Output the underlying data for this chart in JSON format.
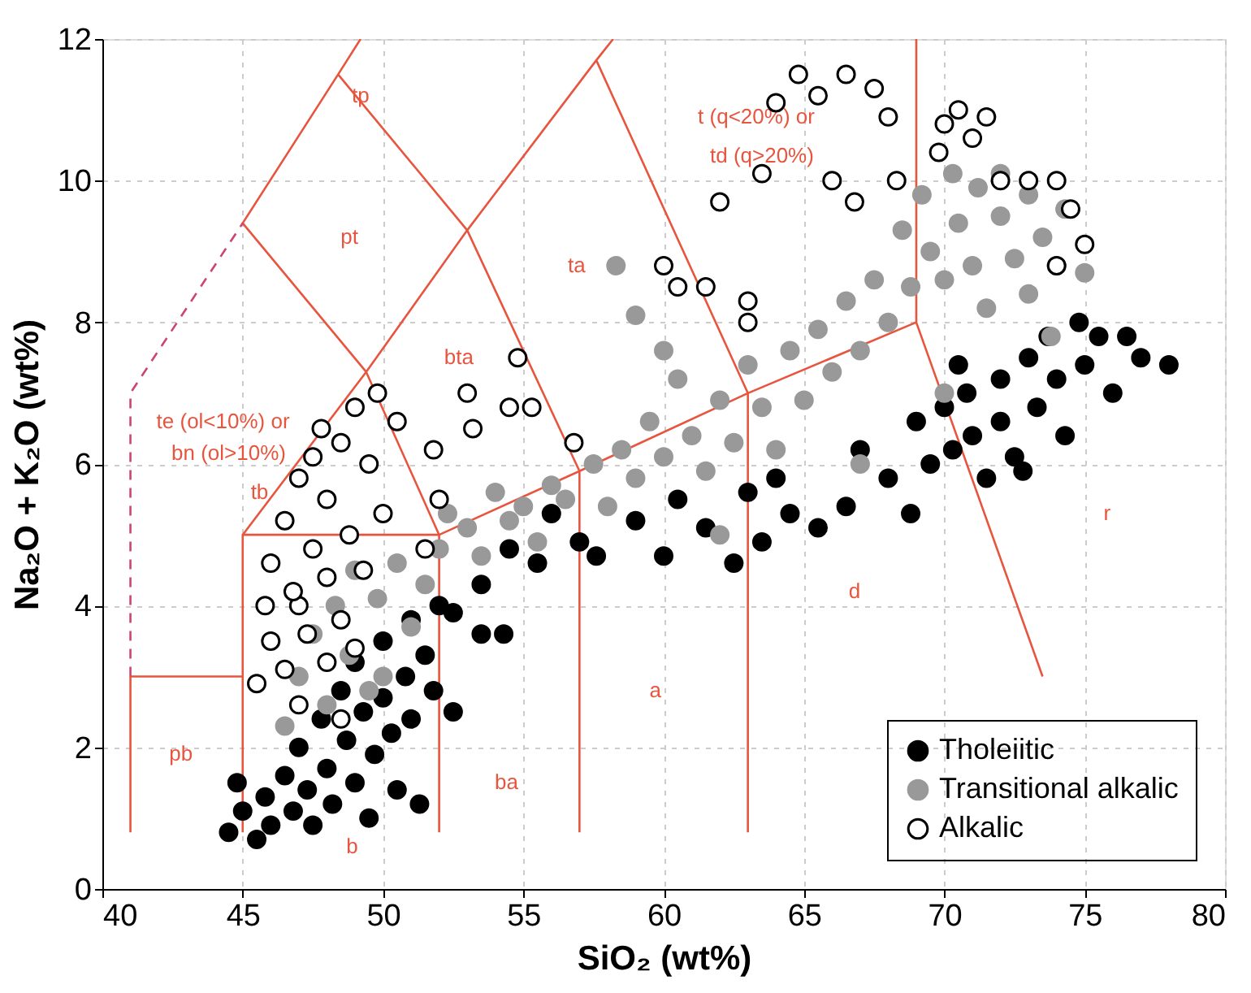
{
  "chart_data": {
    "type": "scatter",
    "xlabel": "SiO₂ (wt%)",
    "ylabel": "Na₂O + K₂O (wt%)",
    "xlim": [
      40,
      80
    ],
    "ylim": [
      0,
      12
    ],
    "xticks": [
      40,
      45,
      50,
      55,
      60,
      65,
      70,
      75,
      80
    ],
    "yticks": [
      0,
      2,
      4,
      6,
      8,
      10,
      12
    ],
    "grid": true,
    "legend": "bottom right",
    "marker": "circle",
    "series": [
      {
        "name": "Tholeiitic",
        "color": "#000000",
        "x": [
          44.5,
          44.8,
          45,
          45.5,
          45.8,
          46,
          46.5,
          46.8,
          47,
          47.3,
          47.5,
          47.8,
          48,
          48.2,
          48.5,
          48.7,
          49,
          49,
          49.3,
          49.5,
          49.7,
          50,
          50,
          50.3,
          50.5,
          50.8,
          51,
          51,
          51.3,
          51.5,
          51.8,
          52,
          52.5,
          52.5,
          53.5,
          53.5,
          54.3,
          54.5,
          55.5,
          56,
          57,
          57.6,
          59,
          60,
          60.5,
          61.5,
          62.5,
          63,
          63.5,
          64,
          64.5,
          65.5,
          66.5,
          67,
          68,
          68.8,
          69,
          69.5,
          70,
          70.3,
          70.8,
          71,
          71.5,
          72,
          72,
          72.5,
          73,
          73.3,
          73.7,
          74,
          74.3,
          74.8,
          75,
          75.5,
          76,
          76.5,
          77,
          78,
          72.8,
          70.5
        ],
        "values": [
          0.8,
          1.5,
          1.1,
          0.7,
          1.3,
          0.9,
          1.6,
          1.1,
          2.0,
          1.4,
          0.9,
          2.4,
          1.7,
          1.2,
          2.8,
          2.1,
          1.5,
          3.2,
          2.5,
          1.0,
          1.9,
          3.5,
          2.7,
          2.2,
          1.4,
          3.0,
          3.8,
          2.4,
          1.2,
          3.3,
          2.8,
          4.0,
          3.9,
          2.5,
          4.3,
          3.6,
          3.6,
          4.8,
          4.6,
          5.3,
          4.9,
          4.7,
          5.2,
          4.7,
          5.5,
          5.1,
          4.6,
          5.6,
          4.9,
          5.8,
          5.3,
          5.1,
          5.4,
          6.2,
          5.8,
          5.3,
          6.6,
          6.0,
          6.8,
          6.2,
          7.0,
          6.4,
          5.8,
          7.2,
          6.6,
          6.1,
          7.5,
          6.8,
          7.8,
          7.2,
          6.4,
          8.0,
          7.4,
          7.8,
          7.0,
          7.8,
          7.5,
          7.4,
          5.9,
          7.4
        ]
      },
      {
        "name": "Transitional alkalic",
        "color": "#999999",
        "x": [
          46.5,
          47,
          47.5,
          48,
          48.3,
          48.8,
          49,
          49.5,
          49.8,
          50,
          50.5,
          51,
          51.5,
          52,
          52.3,
          53,
          53.5,
          54,
          54.5,
          55,
          55.5,
          56,
          56.5,
          57.5,
          58,
          58.5,
          59,
          59.5,
          60,
          60.5,
          61,
          61.5,
          62,
          62.5,
          63,
          63.5,
          64,
          64.5,
          65,
          65.5,
          66,
          66.5,
          67,
          67.5,
          68,
          68.5,
          68.8,
          69.2,
          69.5,
          70,
          70.3,
          70.5,
          71,
          71.2,
          71.5,
          72,
          72,
          72.5,
          73,
          73,
          73.5,
          74,
          74.3,
          75,
          73.8,
          70,
          67,
          62,
          60,
          59,
          58.3
        ],
        "values": [
          2.3,
          3.0,
          3.6,
          2.6,
          4.0,
          3.3,
          4.5,
          2.8,
          4.1,
          3.0,
          4.6,
          3.7,
          4.3,
          4.8,
          5.3,
          5.1,
          4.7,
          5.6,
          5.2,
          5.4,
          4.9,
          5.7,
          5.5,
          6.0,
          5.4,
          6.2,
          5.8,
          6.6,
          6.1,
          7.2,
          6.4,
          5.9,
          6.9,
          6.3,
          7.4,
          6.8,
          6.2,
          7.6,
          6.9,
          7.9,
          7.3,
          8.3,
          7.6,
          8.6,
          8.0,
          9.3,
          8.5,
          9.8,
          9.0,
          8.6,
          10.1,
          9.4,
          8.8,
          9.9,
          8.2,
          9.5,
          10.1,
          8.9,
          9.8,
          8.4,
          9.2,
          8.8,
          9.6,
          8.7,
          7.8,
          7.0,
          6.0,
          5.0,
          7.6,
          8.1,
          8.8
        ]
      },
      {
        "name": "Alkalic",
        "color": "#ffffff",
        "x": [
          45.5,
          46,
          46,
          46.5,
          46.5,
          47,
          47,
          47,
          47.3,
          47.5,
          47.5,
          48,
          48,
          48,
          48.5,
          48.5,
          48.5,
          48.8,
          49,
          49,
          49.3,
          49.5,
          49.8,
          50,
          50.5,
          51.5,
          51.8,
          52,
          53,
          53.2,
          54.5,
          54.8,
          55.3,
          56.8,
          60,
          60.5,
          61.5,
          62,
          63,
          63,
          63.5,
          64,
          64.8,
          65.5,
          66,
          66.5,
          66.8,
          67.5,
          68,
          68.3,
          69.8,
          70,
          70.5,
          71,
          71.5,
          72,
          73,
          74,
          74.5,
          74,
          75,
          47.8,
          46.8,
          45.8
        ],
        "values": [
          2.9,
          3.5,
          4.6,
          3.1,
          5.2,
          4.0,
          5.8,
          2.6,
          3.6,
          4.8,
          6.1,
          3.2,
          4.4,
          5.5,
          2.4,
          3.8,
          6.3,
          5.0,
          3.4,
          6.8,
          4.5,
          6.0,
          7.0,
          5.3,
          6.6,
          4.8,
          6.2,
          5.5,
          7.0,
          6.5,
          6.8,
          7.5,
          6.8,
          6.3,
          8.8,
          8.5,
          8.5,
          9.7,
          8.3,
          8.0,
          10.1,
          11.1,
          11.5,
          11.2,
          10.0,
          11.5,
          9.7,
          11.3,
          10.9,
          10.0,
          10.4,
          10.8,
          11.0,
          10.6,
          10.9,
          10.0,
          10.0,
          10.0,
          9.6,
          8.8,
          9.1,
          6.5,
          4.2,
          4.0
        ]
      },
      {
        "type": "line",
        "color": "#e8553f",
        "marker": "none",
        "line_style": "solid",
        "x": [
          41,
          41,
          45,
          null,
          45,
          45,
          52,
          52,
          null,
          52,
          57,
          63,
          69,
          69,
          null,
          57,
          57,
          null,
          63,
          63,
          null,
          69,
          73.5,
          null,
          45,
          49.4,
          53,
          57.6,
          58.2,
          null,
          52,
          49.4,
          45,
          48.4,
          49.2,
          null,
          57,
          53,
          48.4,
          null,
          63,
          57.6
        ],
        "values": [
          0.8,
          3,
          3,
          null,
          0.8,
          5,
          5,
          0.8,
          null,
          5,
          5.9,
          7,
          8,
          12,
          null,
          0.8,
          5.9,
          null,
          0.8,
          7,
          null,
          8,
          3,
          null,
          5,
          7.3,
          9.3,
          11.7,
          12,
          null,
          5,
          7.3,
          9.4,
          11.5,
          12,
          null,
          5.9,
          9.3,
          11.5,
          null,
          7,
          11.7
        ]
      },
      {
        "type": "line",
        "color": "#cc4477",
        "marker": "none",
        "line_style": "dashed",
        "x": [
          41,
          41,
          45
        ],
        "values": [
          3,
          7,
          9.4
        ]
      }
    ],
    "annotations": [
      "pb",
      "b",
      "ba",
      "a",
      "d",
      "r",
      "tb",
      "bta",
      "ta",
      "pt",
      "tp",
      "t (q<20%) or",
      "td (q>20%)",
      "te (ol<10%) or",
      "bn (ol>10%)"
    ]
  }
}
